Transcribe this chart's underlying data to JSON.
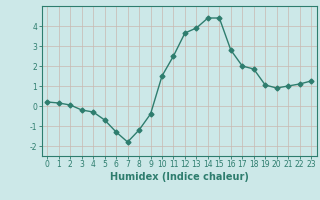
{
  "x": [
    0,
    1,
    2,
    3,
    4,
    5,
    6,
    7,
    8,
    9,
    10,
    11,
    12,
    13,
    14,
    15,
    16,
    17,
    18,
    19,
    20,
    21,
    22,
    23
  ],
  "y": [
    0.2,
    0.15,
    0.05,
    -0.2,
    -0.3,
    -0.7,
    -1.3,
    -1.8,
    -1.2,
    -0.4,
    1.5,
    2.5,
    3.65,
    3.9,
    4.4,
    4.4,
    2.8,
    2.0,
    1.85,
    1.05,
    0.9,
    1.0,
    1.1,
    1.25
  ],
  "line_color": "#2e7d6e",
  "marker": "D",
  "marker_size": 2.5,
  "bg_color": "#cce8e8",
  "grid_color": "#c8b8b0",
  "xlabel": "Humidex (Indice chaleur)",
  "ylim": [
    -2.5,
    5.0
  ],
  "xlim": [
    -0.5,
    23.5
  ],
  "yticks": [
    -2,
    -1,
    0,
    1,
    2,
    3,
    4
  ],
  "xticks": [
    0,
    1,
    2,
    3,
    4,
    5,
    6,
    7,
    8,
    9,
    10,
    11,
    12,
    13,
    14,
    15,
    16,
    17,
    18,
    19,
    20,
    21,
    22,
    23
  ],
  "xtick_labels": [
    "0",
    "1",
    "2",
    "3",
    "4",
    "5",
    "6",
    "7",
    "8",
    "9",
    "10",
    "11",
    "12",
    "13",
    "14",
    "15",
    "16",
    "17",
    "18",
    "19",
    "20",
    "21",
    "22",
    "23"
  ],
  "tick_fontsize": 5.5,
  "label_fontsize": 7.0
}
